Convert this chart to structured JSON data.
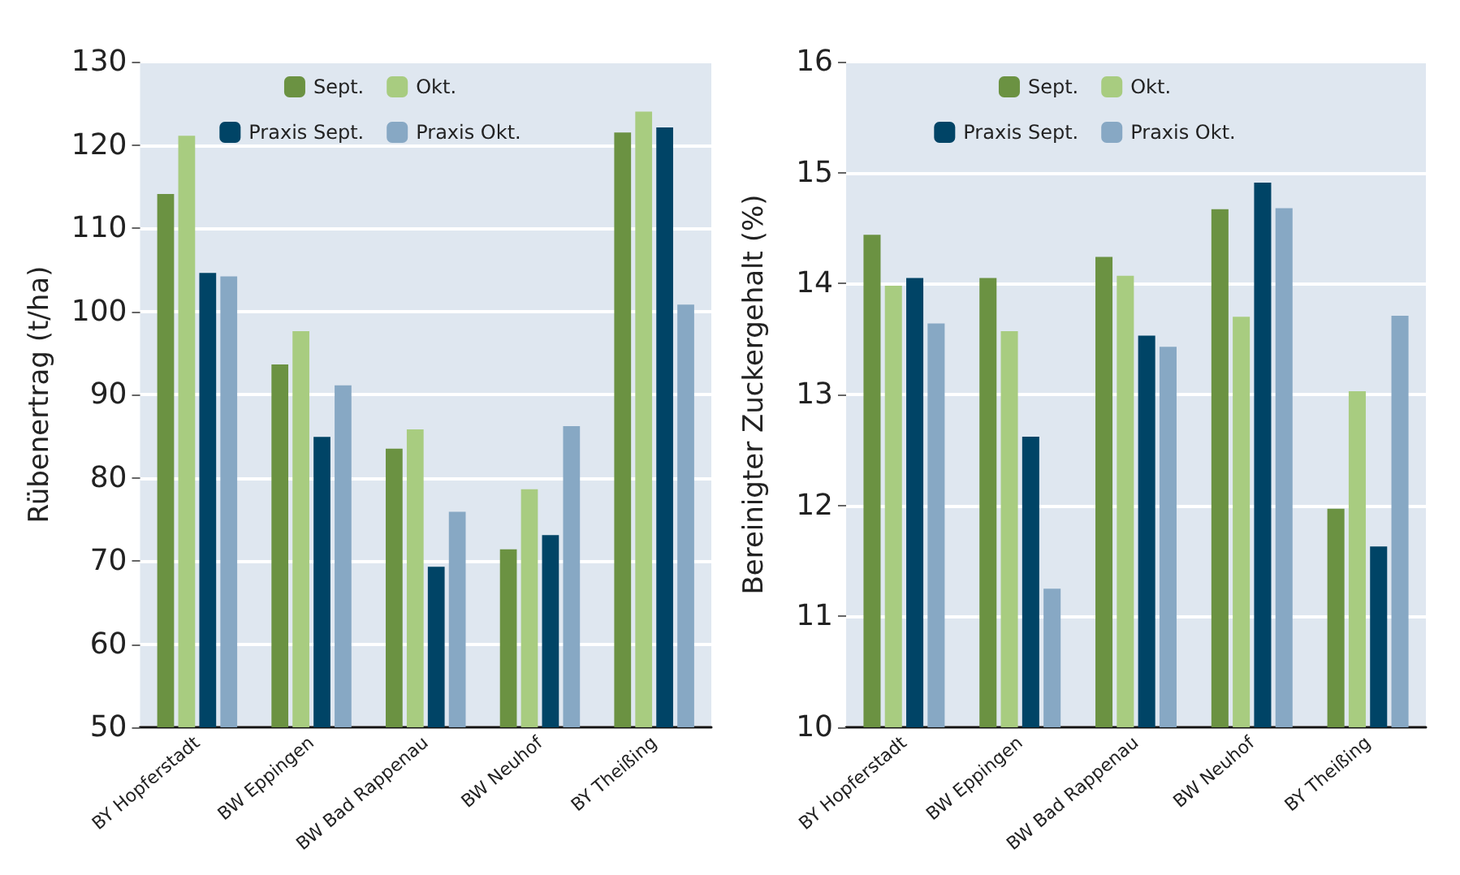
{
  "chart_data": [
    {
      "type": "bar",
      "ylabel": "Rübenertrag (t/ha)",
      "categories": [
        "BY Hopferstadt",
        "BW Eppingen",
        "BW Bad Rappenau",
        "BW Neuhof",
        "BY Theißing"
      ],
      "series": [
        {
          "name": "Sept.",
          "color": "#6b9242",
          "values": [
            114.1,
            93.6,
            83.5,
            71.4,
            121.5
          ]
        },
        {
          "name": "Okt.",
          "color": "#a8cc80",
          "values": [
            121.1,
            97.6,
            85.8,
            78.6,
            124.0
          ]
        },
        {
          "name": "Praxis Sept.",
          "color": "#004466",
          "values": [
            104.6,
            84.9,
            69.3,
            73.1,
            122.1
          ]
        },
        {
          "name": "Praxis Okt.",
          "color": "#87a8c4",
          "values": [
            104.2,
            91.1,
            75.9,
            86.2,
            100.8
          ]
        }
      ],
      "ylim": [
        50,
        130
      ],
      "yticks": [
        50,
        60,
        70,
        80,
        90,
        100,
        110,
        120,
        130
      ],
      "grid": "y",
      "legend": "top"
    },
    {
      "type": "bar",
      "ylabel": "Bereinigter Zuckergehalt (%)",
      "categories": [
        "BY Hopferstadt",
        "BW Eppingen",
        "BW Bad Rappenau",
        "BW Neuhof",
        "BY Theißing"
      ],
      "series": [
        {
          "name": "Sept.",
          "color": "#6b9242",
          "values": [
            14.44,
            14.05,
            14.24,
            14.67,
            11.97
          ]
        },
        {
          "name": "Okt.",
          "color": "#a8cc80",
          "values": [
            13.98,
            13.57,
            14.07,
            13.7,
            13.03
          ]
        },
        {
          "name": "Praxis Sept.",
          "color": "#004466",
          "values": [
            14.05,
            12.62,
            13.53,
            14.91,
            11.63
          ]
        },
        {
          "name": "Praxis Okt.",
          "color": "#87a8c4",
          "values": [
            13.64,
            11.25,
            13.43,
            14.68,
            13.71
          ]
        }
      ],
      "ylim": [
        10,
        16
      ],
      "yticks": [
        10,
        11,
        12,
        13,
        14,
        15,
        16
      ],
      "grid": "y",
      "legend": "top"
    }
  ]
}
